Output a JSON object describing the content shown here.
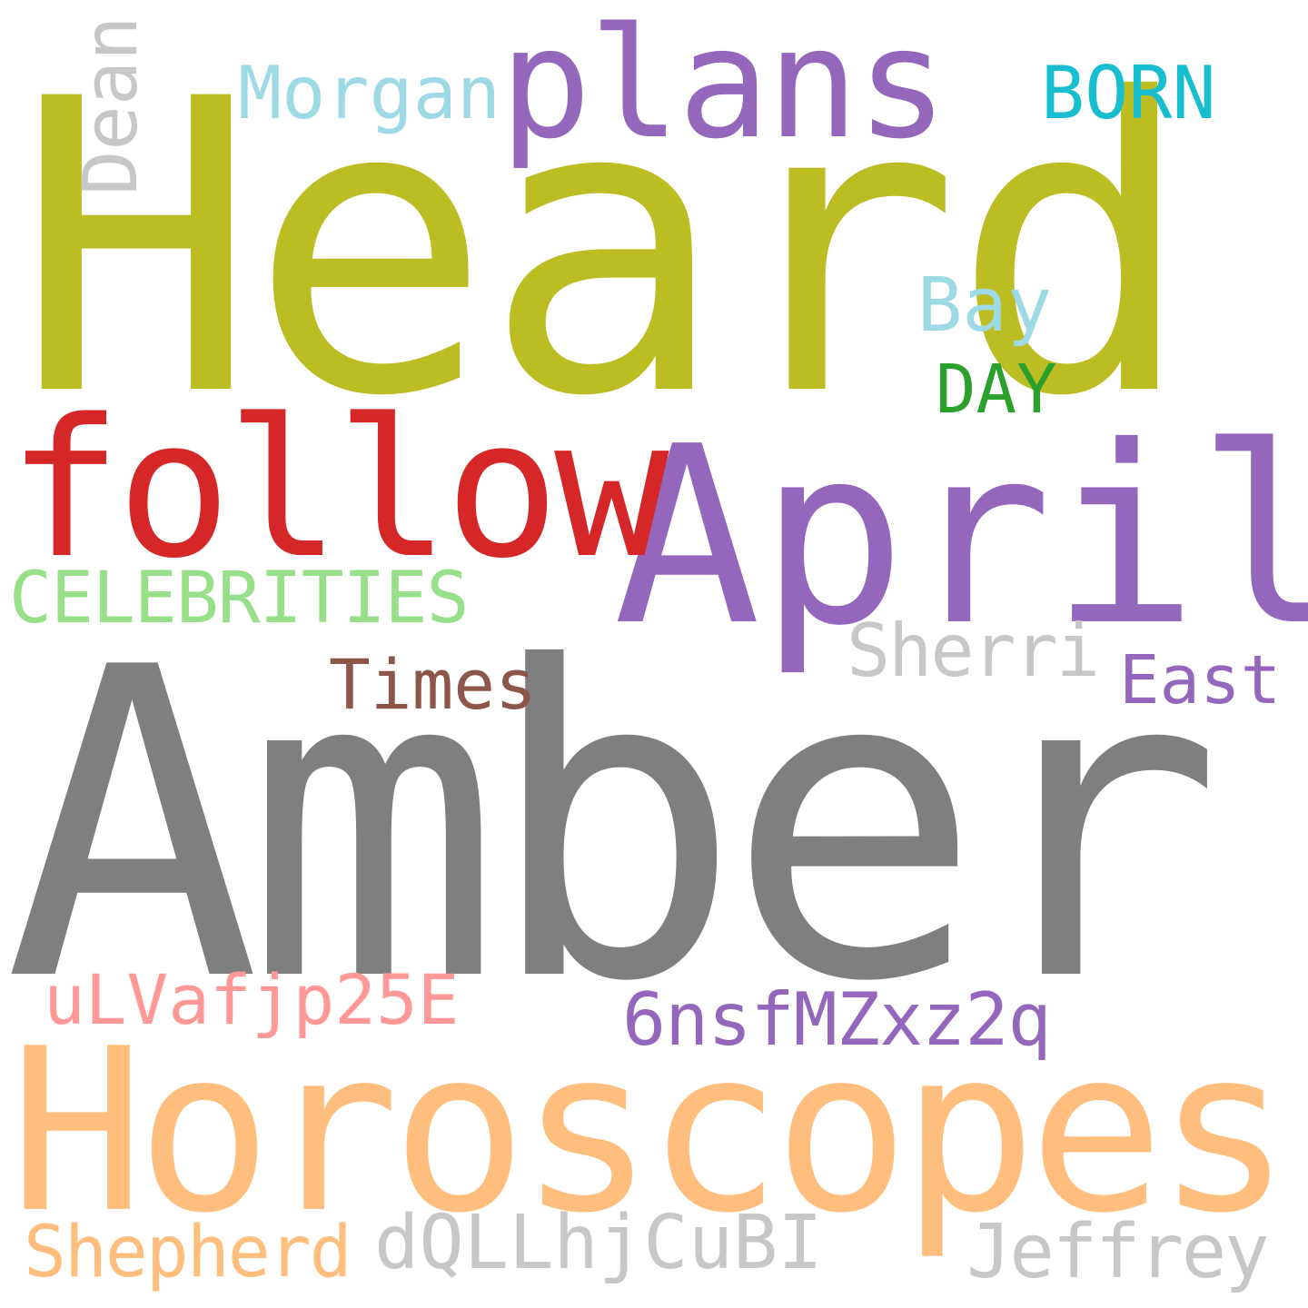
{
  "words": [
    {
      "text": "Heard",
      "color": "#bcbd22"
    },
    {
      "text": "Amber",
      "color": "#7f7f7f"
    },
    {
      "text": "Horoscopes",
      "color": "#ffbe7d"
    },
    {
      "text": "April",
      "color": "#9467bd"
    },
    {
      "text": "follow",
      "color": "#d62728"
    },
    {
      "text": "plans",
      "color": "#9467bd"
    },
    {
      "text": "Morgan",
      "color": "#9edae5"
    },
    {
      "text": "Dean",
      "color": "#c7c7c7"
    },
    {
      "text": "BORN",
      "color": "#17becf"
    },
    {
      "text": "Bay",
      "color": "#9edae5"
    },
    {
      "text": "DAY",
      "color": "#2ca02c"
    },
    {
      "text": "CELEBRITIES",
      "color": "#98df8a"
    },
    {
      "text": "Sherri",
      "color": "#c7c7c7"
    },
    {
      "text": "Times",
      "color": "#8c564b"
    },
    {
      "text": "East",
      "color": "#9467bd"
    },
    {
      "text": "uLVafjp25E",
      "color": "#ff9896"
    },
    {
      "text": "6nsfMZxz2q",
      "color": "#9467bd"
    },
    {
      "text": "Shepherd",
      "color": "#ffbe7d"
    },
    {
      "text": "dQLLhjCuBI",
      "color": "#c7c7c7"
    },
    {
      "text": "Jeffrey",
      "color": "#c7c7c7"
    }
  ]
}
